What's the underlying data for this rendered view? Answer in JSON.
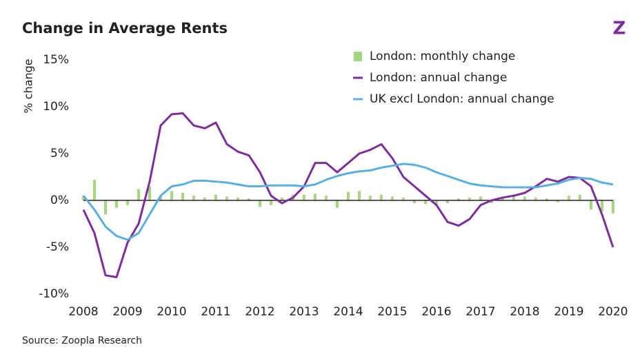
{
  "chart_data": {
    "type": "line",
    "title": "Change in Average Rents",
    "logo": "Z",
    "source": "Source: Zoopla Research",
    "ylabel": "% change",
    "x": [
      2008,
      2008.25,
      2008.5,
      2008.75,
      2009,
      2009.25,
      2009.5,
      2009.75,
      2010,
      2010.25,
      2010.5,
      2010.75,
      2011,
      2011.25,
      2011.5,
      2011.75,
      2012,
      2012.25,
      2012.5,
      2012.75,
      2013,
      2013.25,
      2013.5,
      2013.75,
      2014,
      2014.25,
      2014.5,
      2014.75,
      2015,
      2015.25,
      2015.5,
      2015.75,
      2016,
      2016.25,
      2016.5,
      2016.75,
      2017,
      2017.25,
      2017.5,
      2017.75,
      2018,
      2018.25,
      2018.5,
      2018.75,
      2019,
      2019.25,
      2019.5,
      2019.75,
      2020
    ],
    "series": [
      {
        "name": "London: monthly change",
        "kind": "bar",
        "color": "#a3d67f",
        "values": [
          0.5,
          2.2,
          -1.5,
          -0.8,
          -0.5,
          1.2,
          1.5,
          0.5,
          1.0,
          0.8,
          0.5,
          0.3,
          0.6,
          0.4,
          0.3,
          0.2,
          -0.7,
          -0.5,
          0.3,
          0.6,
          0.6,
          0.7,
          0.5,
          -0.8,
          0.9,
          1.0,
          0.5,
          0.6,
          0.4,
          0.3,
          -0.3,
          -0.4,
          -0.5,
          -0.3,
          0.2,
          0.3,
          0.4,
          -0.3,
          0.3,
          0.5,
          0.4,
          0.3,
          0.2,
          -0.2,
          0.5,
          0.6,
          -1.0,
          -1.2,
          -1.4
        ]
      },
      {
        "name": "London: annual change",
        "kind": "line",
        "color": "#7b2d9e",
        "values": [
          -1,
          -3.5,
          -8,
          -8.2,
          -4.5,
          -2.5,
          2,
          8,
          9.2,
          9.3,
          8,
          7.7,
          8.3,
          6,
          5.2,
          4.8,
          3,
          0.5,
          -0.3,
          0.3,
          1.5,
          4,
          4,
          3,
          4,
          5,
          5.4,
          6,
          4.5,
          2.5,
          1.5,
          0.5,
          -0.5,
          -2.3,
          -2.7,
          -2,
          -0.5,
          0,
          0.3,
          0.5,
          0.8,
          1.5,
          2.3,
          2,
          2.5,
          2.4,
          1.5,
          -1.5,
          -5
        ]
      },
      {
        "name": "UK excl London: annual change",
        "kind": "line",
        "color": "#5aaee0",
        "values": [
          0.5,
          -1,
          -2.8,
          -3.8,
          -4.2,
          -3.5,
          -1.5,
          0.5,
          1.5,
          1.7,
          2.1,
          2.1,
          2.0,
          1.9,
          1.7,
          1.5,
          1.5,
          1.6,
          1.6,
          1.6,
          1.5,
          1.7,
          2.2,
          2.6,
          2.9,
          3.1,
          3.2,
          3.5,
          3.7,
          3.9,
          3.8,
          3.5,
          3.0,
          2.6,
          2.2,
          1.8,
          1.6,
          1.5,
          1.4,
          1.4,
          1.4,
          1.4,
          1.6,
          1.8,
          2.2,
          2.4,
          2.3,
          1.9,
          1.7
        ]
      }
    ],
    "xlim": [
      2008,
      2020
    ],
    "xticks": [
      2008,
      2009,
      2010,
      2011,
      2012,
      2013,
      2014,
      2015,
      2016,
      2017,
      2018,
      2019,
      2020
    ],
    "ylim": [
      -10,
      15
    ],
    "yticks": [
      {
        "value": -10,
        "label": "-10%"
      },
      {
        "value": -5,
        "label": "-5%"
      },
      {
        "value": 0,
        "label": "0%"
      },
      {
        "value": 5,
        "label": "5%"
      },
      {
        "value": 10,
        "label": "10%"
      },
      {
        "value": 15,
        "label": "15%"
      }
    ]
  }
}
